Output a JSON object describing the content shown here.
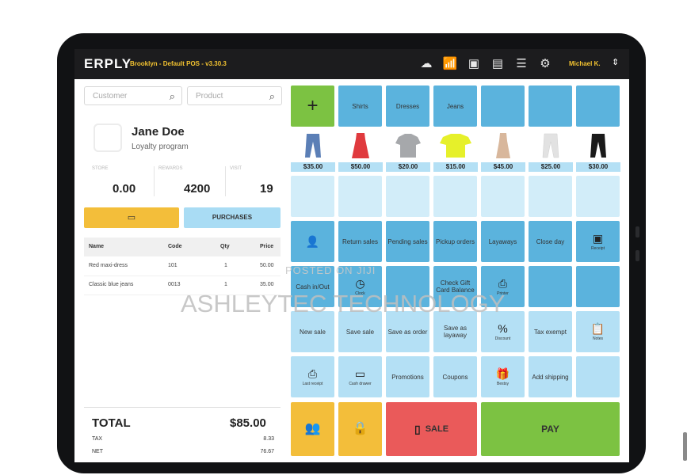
{
  "topbar": {
    "logo": "ERPLY",
    "store": "Brooklyn - Default POS - v3.30.3",
    "user": "Michael K.",
    "icons": [
      "cloud-icon",
      "signal-icon",
      "receipt-icon",
      "drawer-icon",
      "menu-icon",
      "gear-icon",
      "sort-icon"
    ]
  },
  "search": {
    "customer_placeholder": "Customer",
    "product_placeholder": "Product"
  },
  "customer": {
    "name": "Jane Doe",
    "program": "Loyalty program",
    "stats": [
      {
        "label": "Store",
        "value": "0.00"
      },
      {
        "label": "Rewards",
        "value": "4200"
      },
      {
        "label": "Visit",
        "value": "19"
      }
    ]
  },
  "actions": {
    "purchases_label": "PURCHASES"
  },
  "table": {
    "headers": [
      "Name",
      "Code",
      "Qty",
      "Price"
    ],
    "rows": [
      [
        "Red maxi-dress",
        "101",
        "1",
        "50.00"
      ],
      [
        "Classic blue jeans",
        "0013",
        "1",
        "35.00"
      ]
    ]
  },
  "totals": {
    "total_label": "TOTAL",
    "total_value": "$85.00",
    "tax_label": "TAX",
    "tax_value": "8.33",
    "net_label": "NET",
    "net_value": "76.67"
  },
  "categories": [
    "Shirts",
    "Dresses",
    "Jeans"
  ],
  "products": [
    {
      "price": "$35.00",
      "color": "#5b7fb6",
      "shape": "jeans"
    },
    {
      "price": "$50.00",
      "color": "#e03a3e",
      "shape": "dress"
    },
    {
      "price": "$20.00",
      "color": "#a6a8ab",
      "shape": "shirt"
    },
    {
      "price": "$15.00",
      "color": "#e6f02a",
      "shape": "shirt"
    },
    {
      "price": "$45.00",
      "color": "#d8b79c",
      "shape": "dress"
    },
    {
      "price": "$25.00",
      "color": "#e8e8e8",
      "shape": "jeans"
    },
    {
      "price": "$30.00",
      "color": "#1a1a1a",
      "shape": "jeans"
    }
  ],
  "functions": {
    "row4": [
      "Return sales",
      "Pending sales",
      "Pickup orders",
      "Layaways",
      "Close day",
      "Receipt"
    ],
    "row5": [
      "Cash in/Out",
      "Clock",
      "Check Gift Card Balance",
      "Printer"
    ],
    "row6": [
      "New sale",
      "Save sale",
      "Save as order",
      "Save as layaway",
      "Discount",
      "Tax exempt",
      "Notes"
    ],
    "row7": [
      "Last receipt",
      "Cash drawer",
      "Promotions",
      "Coupons",
      "Bestsy",
      "Add shipping"
    ]
  },
  "bottom": {
    "sale_label": "SALE",
    "pay_label": "PAY"
  },
  "watermark": {
    "top": "POSTED ON JIJI",
    "main": "ASHLEYTEC TECHNOLOGY"
  },
  "colors": {
    "accent_blue": "#5bb3dd",
    "light_blue": "#b4e0f5",
    "green": "#7cc242",
    "yellow": "#f3be3a",
    "red": "#ea5a5a"
  }
}
